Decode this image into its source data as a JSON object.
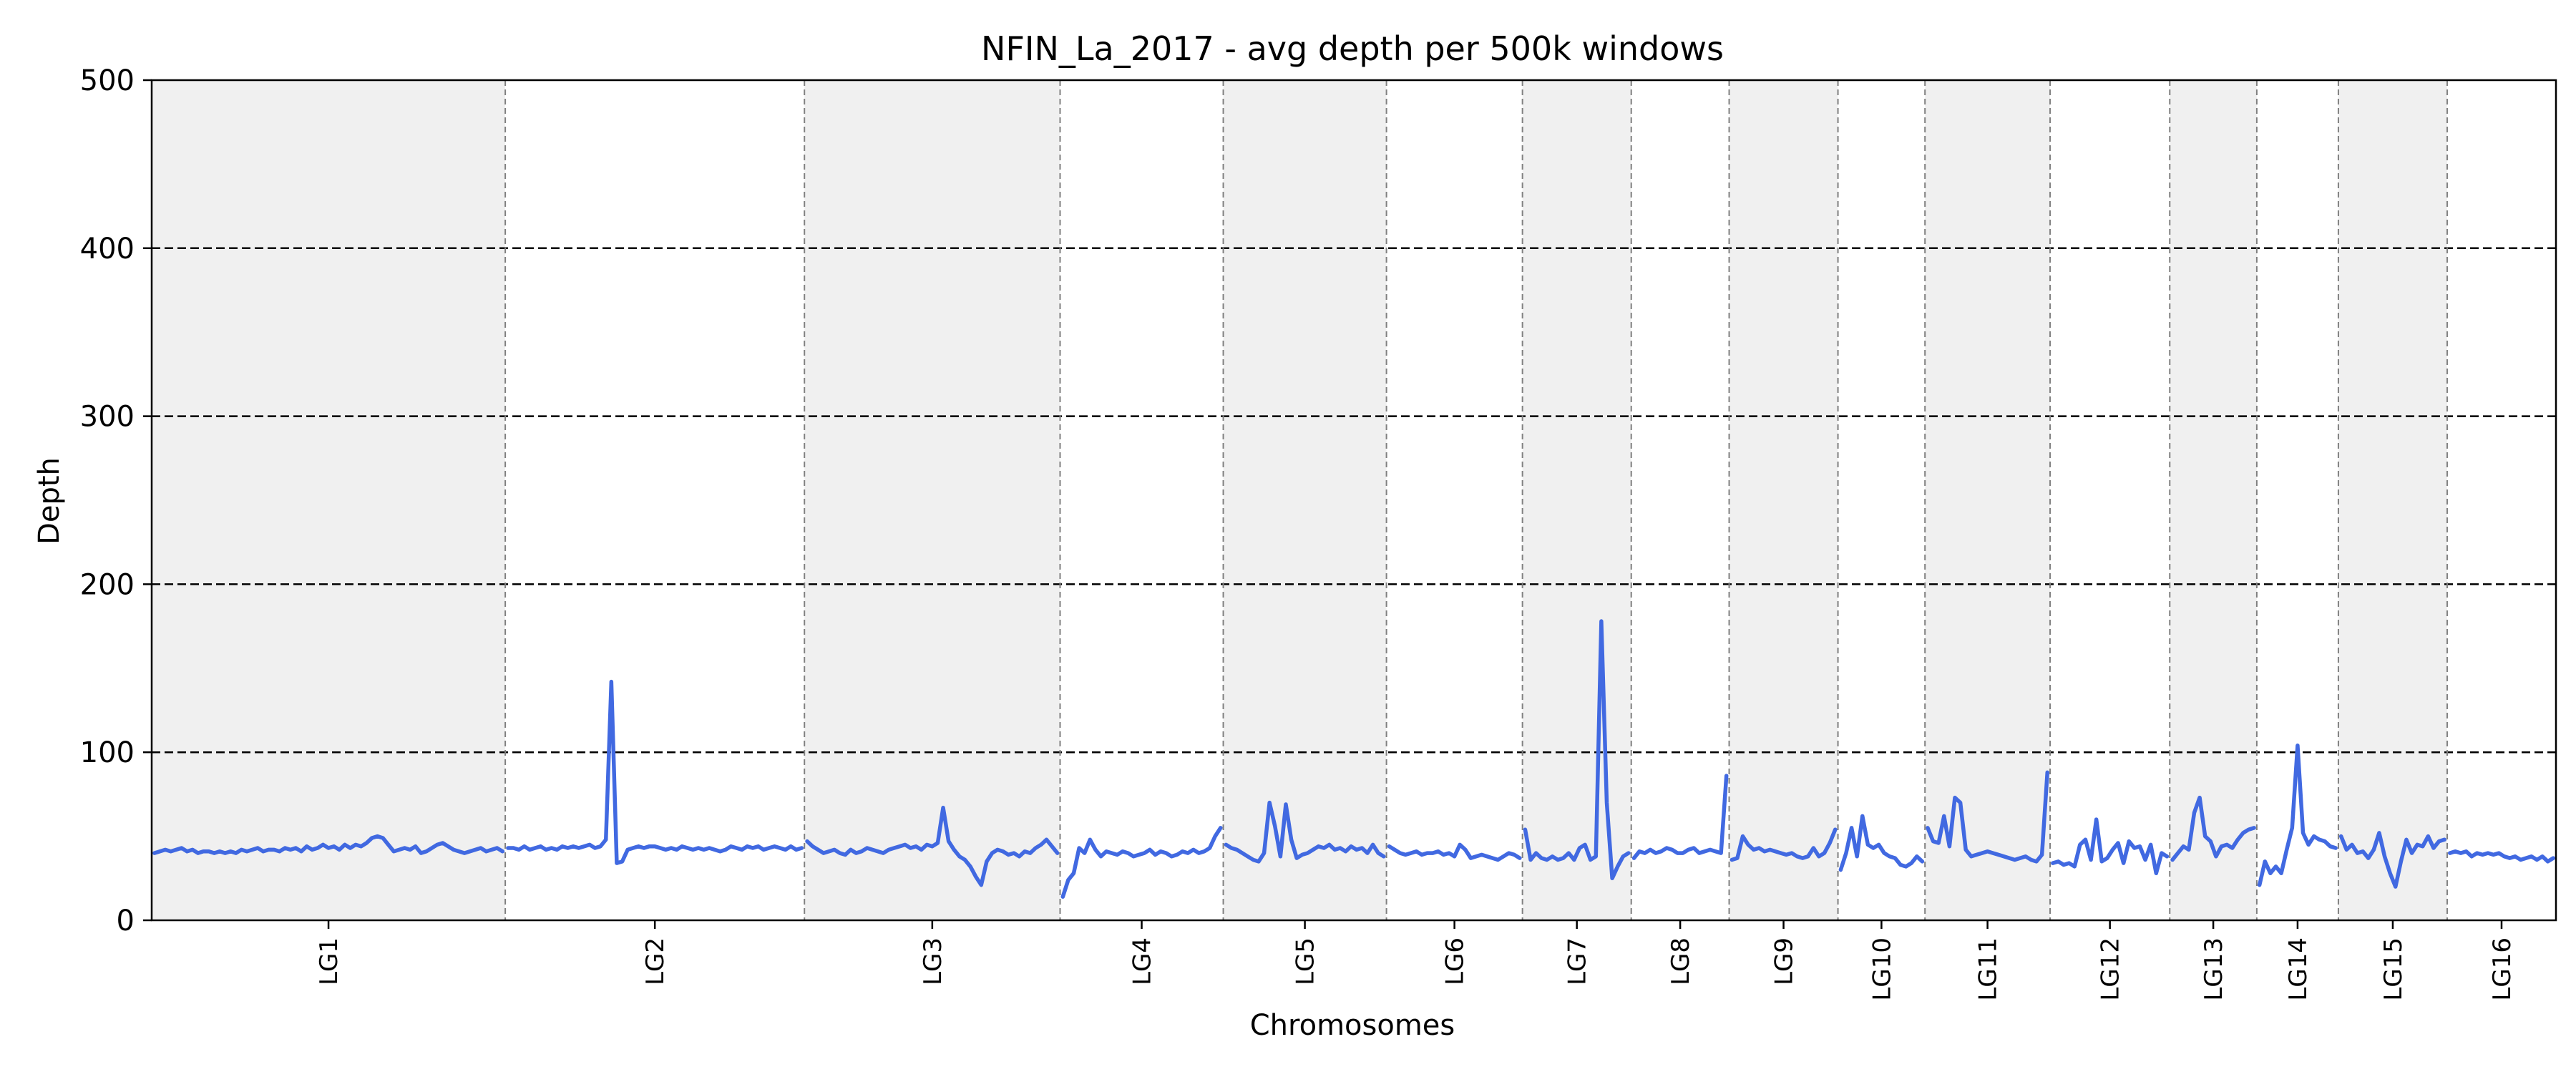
{
  "chart_data": {
    "type": "line",
    "title": "NFIN_La_2017 - avg depth per 500k windows",
    "xlabel": "Chromosomes",
    "ylabel": "Depth",
    "ylim": [
      0,
      500
    ],
    "yticks": [
      0,
      100,
      200,
      300,
      400,
      500
    ],
    "reference_lines": [
      100,
      200,
      300,
      400
    ],
    "grid": false,
    "legend": "none",
    "colors": {
      "line": "#4169e1",
      "shade": "#f0f0f0",
      "boundary": "#808080",
      "reference": "#000000"
    },
    "chromosomes": [
      {
        "name": "LG1",
        "windows": 65,
        "shaded": true,
        "values": [
          40,
          41,
          42,
          41,
          42,
          43,
          41,
          42,
          40,
          41,
          41,
          40,
          41,
          40,
          41,
          40,
          42,
          41,
          42,
          43,
          41,
          42,
          42,
          41,
          43,
          42,
          43,
          41,
          44,
          42,
          43,
          45,
          43,
          44,
          42,
          45,
          43,
          45,
          44,
          46,
          49,
          50,
          49,
          45,
          41,
          42,
          43,
          42,
          44,
          40,
          41,
          43,
          45,
          46,
          44,
          42,
          41,
          40,
          41,
          42,
          43,
          41,
          42,
          43,
          41
        ]
      },
      {
        "name": "LG2",
        "windows": 55,
        "shaded": false,
        "values": [
          43,
          43,
          42,
          44,
          42,
          43,
          44,
          42,
          43,
          42,
          44,
          43,
          44,
          43,
          44,
          45,
          43,
          44,
          48,
          142,
          34,
          35,
          42,
          43,
          44,
          43,
          44,
          44,
          43,
          42,
          43,
          42,
          44,
          43,
          42,
          43,
          42,
          43,
          42,
          41,
          42,
          44,
          43,
          42,
          44,
          43,
          44,
          42,
          43,
          44,
          43,
          42,
          44,
          42,
          43
        ]
      },
      {
        "name": "LG3",
        "windows": 47,
        "shaded": true,
        "values": [
          47,
          44,
          42,
          40,
          41,
          42,
          40,
          39,
          42,
          40,
          41,
          43,
          42,
          41,
          40,
          42,
          43,
          44,
          45,
          43,
          44,
          42,
          45,
          44,
          46,
          67,
          47,
          42,
          38,
          36,
          32,
          26,
          21,
          35,
          40,
          42,
          41,
          39,
          40,
          38,
          41,
          40,
          43,
          45,
          48,
          44,
          40
        ]
      },
      {
        "name": "LG4",
        "windows": 30,
        "shaded": false,
        "values": [
          14,
          24,
          28,
          43,
          40,
          48,
          42,
          38,
          41,
          40,
          39,
          41,
          40,
          38,
          39,
          40,
          42,
          39,
          41,
          40,
          38,
          39,
          41,
          40,
          42,
          40,
          41,
          43,
          50,
          55
        ]
      },
      {
        "name": "LG5",
        "windows": 30,
        "shaded": true,
        "values": [
          45,
          43,
          42,
          40,
          38,
          36,
          35,
          40,
          70,
          56,
          38,
          69,
          48,
          37,
          39,
          40,
          42,
          44,
          43,
          45,
          42,
          43,
          41,
          44,
          42,
          43,
          40,
          45,
          40,
          38
        ]
      },
      {
        "name": "LG6",
        "windows": 25,
        "shaded": false,
        "values": [
          44,
          42,
          40,
          39,
          40,
          41,
          39,
          40,
          40,
          41,
          39,
          40,
          38,
          45,
          42,
          37,
          38,
          39,
          38,
          37,
          36,
          38,
          40,
          39,
          37
        ]
      },
      {
        "name": "LG7",
        "windows": 20,
        "shaded": true,
        "values": [
          54,
          36,
          40,
          37,
          36,
          38,
          36,
          37,
          40,
          36,
          43,
          45,
          36,
          38,
          178,
          70,
          25,
          32,
          38,
          40
        ]
      },
      {
        "name": "LG8",
        "windows": 18,
        "shaded": false,
        "values": [
          37,
          41,
          40,
          42,
          40,
          41,
          43,
          42,
          40,
          40,
          42,
          43,
          40,
          41,
          42,
          41,
          40,
          86
        ]
      },
      {
        "name": "LG9",
        "windows": 20,
        "shaded": true,
        "values": [
          36,
          37,
          50,
          45,
          42,
          43,
          41,
          42,
          41,
          40,
          39,
          40,
          38,
          37,
          38,
          43,
          38,
          40,
          46,
          54
        ]
      },
      {
        "name": "LG10",
        "windows": 16,
        "shaded": false,
        "values": [
          30,
          40,
          55,
          38,
          62,
          45,
          43,
          45,
          40,
          38,
          37,
          33,
          32,
          34,
          38,
          35
        ]
      },
      {
        "name": "LG11",
        "windows": 23,
        "shaded": true,
        "values": [
          55,
          47,
          46,
          62,
          44,
          73,
          70,
          42,
          38,
          39,
          40,
          41,
          40,
          39,
          38,
          37,
          36,
          37,
          38,
          36,
          35,
          39,
          88
        ]
      },
      {
        "name": "LG12",
        "windows": 22,
        "shaded": false,
        "values": [
          34,
          35,
          33,
          34,
          32,
          45,
          48,
          36,
          60,
          35,
          37,
          42,
          46,
          34,
          47,
          43,
          44,
          36,
          45,
          28,
          40,
          38
        ]
      },
      {
        "name": "LG13",
        "windows": 16,
        "shaded": true,
        "values": [
          36,
          40,
          44,
          42,
          64,
          73,
          50,
          47,
          38,
          44,
          45,
          43,
          48,
          52,
          54,
          55
        ]
      },
      {
        "name": "LG14",
        "windows": 15,
        "shaded": false,
        "values": [
          21,
          35,
          28,
          32,
          28,
          42,
          55,
          104,
          52,
          45,
          50,
          48,
          47,
          44,
          43
        ]
      },
      {
        "name": "LG15",
        "windows": 20,
        "shaded": true,
        "values": [
          50,
          42,
          45,
          40,
          41,
          37,
          42,
          52,
          38,
          28,
          20,
          35,
          48,
          40,
          45,
          44,
          50,
          43,
          47,
          48
        ]
      },
      {
        "name": "LG16",
        "windows": 20,
        "shaded": false,
        "values": [
          40,
          41,
          40,
          41,
          38,
          40,
          39,
          40,
          39,
          40,
          38,
          37,
          38,
          36,
          37,
          38,
          36,
          38,
          35,
          37
        ]
      }
    ]
  }
}
